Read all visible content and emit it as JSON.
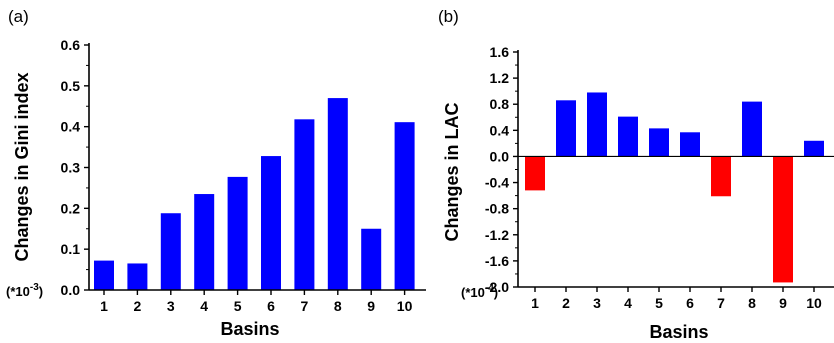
{
  "chart_data": [
    {
      "type": "bar",
      "panel_label": "(a)",
      "categories": [
        "1",
        "2",
        "3",
        "4",
        "5",
        "6",
        "7",
        "8",
        "9",
        "10"
      ],
      "values": [
        0.072,
        0.065,
        0.188,
        0.235,
        0.277,
        0.328,
        0.418,
        0.47,
        0.15,
        0.411
      ],
      "bar_colors": [
        "#0000ff",
        "#0000ff",
        "#0000ff",
        "#0000ff",
        "#0000ff",
        "#0000ff",
        "#0000ff",
        "#0000ff",
        "#0000ff",
        "#0000ff"
      ],
      "ylim": [
        0,
        0.6
      ],
      "yticks": [
        "0.0",
        "0.1",
        "0.2",
        "0.3",
        "0.4",
        "0.5",
        "0.6"
      ],
      "xlabel": "Basins",
      "ylabel": "Changes in Gini index",
      "multiplier": "(*10",
      "multiplier_exp": "-3",
      "multiplier_close": ")",
      "grid": false
    },
    {
      "type": "bar",
      "panel_label": "(b)",
      "categories": [
        "1",
        "2",
        "3",
        "4",
        "5",
        "6",
        "7",
        "8",
        "9",
        "10"
      ],
      "values": [
        -0.52,
        0.86,
        0.98,
        0.61,
        0.43,
        0.37,
        -0.61,
        0.84,
        -1.93,
        0.24
      ],
      "bar_colors": [
        "#ff0000",
        "#0000ff",
        "#0000ff",
        "#0000ff",
        "#0000ff",
        "#0000ff",
        "#ff0000",
        "#0000ff",
        "#ff0000",
        "#0000ff"
      ],
      "ylim": [
        -2.0,
        1.6
      ],
      "yticks": [
        "-2.0",
        "-1.6",
        "-1.2",
        "-0.8",
        "-0.4",
        "0.0",
        "0.4",
        "0.8",
        "1.2",
        "1.6"
      ],
      "xlabel": "Basins",
      "ylabel": "Changes in LAC",
      "multiplier": "(*10",
      "multiplier_exp": "-4",
      "multiplier_close": ")",
      "grid": false
    }
  ]
}
